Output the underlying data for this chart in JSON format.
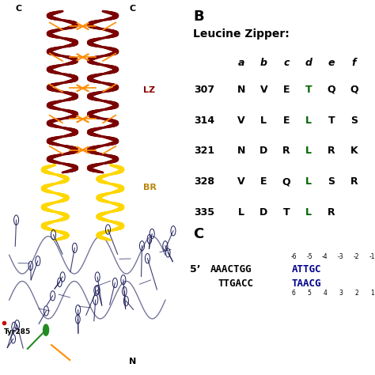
{
  "panel_B_title": "B",
  "leucine_zipper_title": "Leucine Zipper:",
  "abcdef_header": [
    "a",
    "b",
    "c",
    "d",
    "e",
    "f"
  ],
  "lz_rows": [
    {
      "num": "307",
      "letters": [
        "N",
        "V",
        "E",
        "T",
        "Q",
        "Q"
      ],
      "green_idx": [
        3
      ]
    },
    {
      "num": "314",
      "letters": [
        "V",
        "L",
        "E",
        "L",
        "T",
        "S"
      ],
      "green_idx": [
        3
      ]
    },
    {
      "num": "321",
      "letters": [
        "N",
        "D",
        "R",
        "L",
        "R",
        "K"
      ],
      "green_idx": [
        3
      ]
    },
    {
      "num": "328",
      "letters": [
        "V",
        "E",
        "Q",
        "L",
        "S",
        "R"
      ],
      "green_idx": [
        3
      ]
    },
    {
      "num": "335",
      "letters": [
        "L",
        "D",
        "T",
        "L",
        "R",
        ""
      ],
      "green_idx": [
        3
      ]
    }
  ],
  "panel_C_title": "C",
  "top_numbers": [
    "-6",
    "-5",
    "-4",
    "-3",
    "-2",
    "-1"
  ],
  "bottom_numbers": [
    "6",
    "5",
    "4",
    "3",
    "2",
    "1"
  ],
  "strand1_black": "AAACTGG",
  "strand1_blue": "ATTGC",
  "strand2_black": "TTGACC",
  "strand2_blue": "TAACG",
  "background_color": "#ffffff",
  "text_color_black": "#000000",
  "text_color_green": "#006400",
  "text_color_blue": "#00008B",
  "lz_label_color": "#8B0000",
  "br_label_color": "#B8860B",
  "lz_helix_color": "#7B0000",
  "br_helix_color": "#FFD700",
  "side_chain_color": "#FF8C00",
  "dna_color": "#1C1C5A"
}
